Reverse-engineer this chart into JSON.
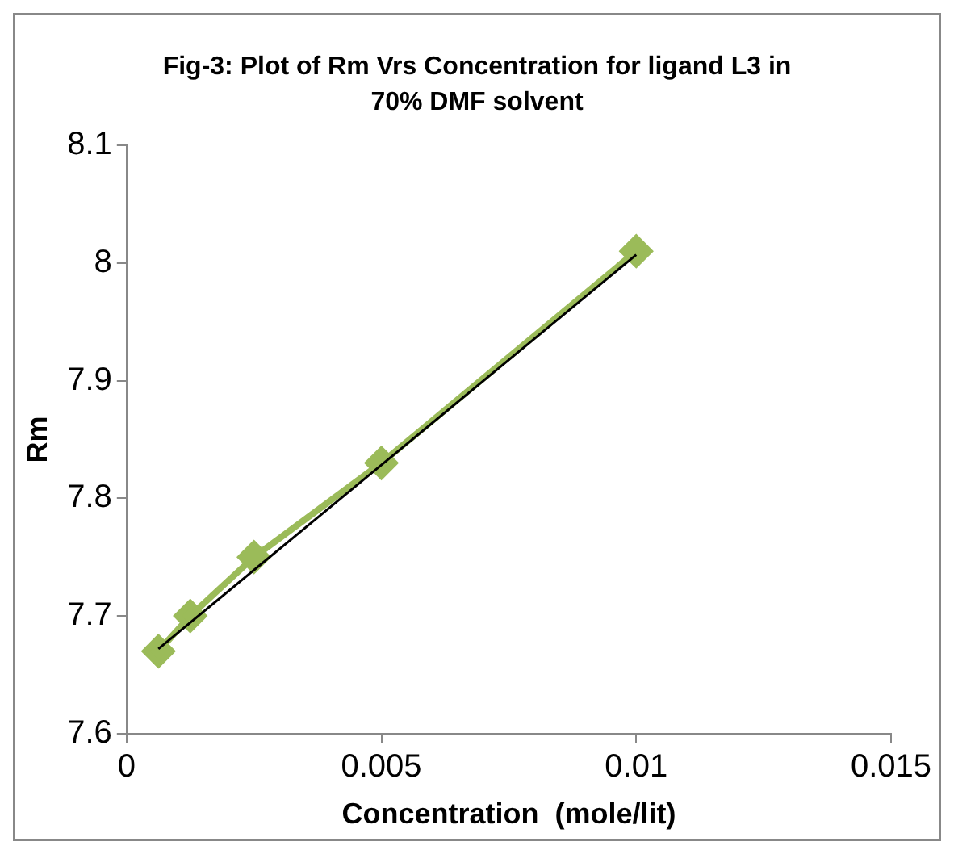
{
  "chart_data": {
    "type": "line",
    "title": "Fig-3: Plot of Rm Vrs Concentration for ligand L3 in 70% DMF solvent",
    "xlabel": "Concentration  (mole/lit)",
    "ylabel": "Rm",
    "x": [
      0.000625,
      0.00125,
      0.0025,
      0.005,
      0.01
    ],
    "series": [
      {
        "color": "#9bbb59",
        "values": [
          7.67,
          7.7,
          7.75,
          7.83,
          8.01
        ],
        "marker": "diamond"
      },
      {
        "type": "line",
        "color": "#000000",
        "x": [
          0.000625,
          0.01
        ],
        "values": [
          7.672,
          8.007
        ],
        "marker": "none"
      }
    ],
    "xlim": [
      0,
      0.015
    ],
    "xticks": [
      0,
      0.005,
      0.01,
      0.015
    ],
    "ylim": [
      7.6,
      8.1
    ],
    "yticks": [
      7.6,
      7.7,
      7.8,
      7.9,
      8,
      8.1
    ],
    "grid": false,
    "legend": false
  }
}
